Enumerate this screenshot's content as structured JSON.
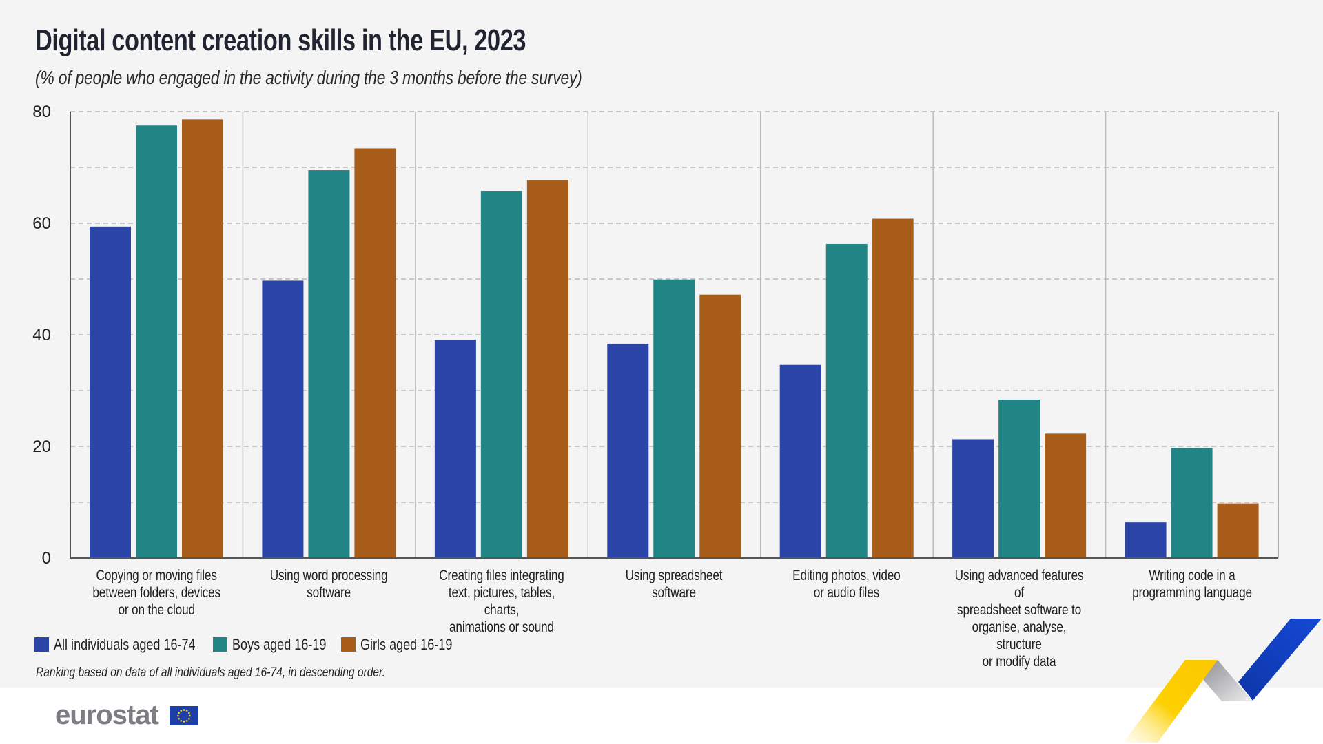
{
  "header": {
    "title": "Digital content creation skills in the EU, 2023",
    "subtitle": "(% of people who engaged in the activity during the 3 months before the survey)"
  },
  "footnote": "Ranking based on data of all individuals aged 16-74, in descending order.",
  "brand": {
    "logo_text": "eurostat",
    "flag_icon": "eu-flag-icon",
    "decoration": "ribbon-chevron-graphic"
  },
  "colors": {
    "all_individuals": "#2a44a8",
    "boys": "#228585",
    "girls": "#a85e1a",
    "background": "#f4f4f4",
    "gridline": "#9a9a9a",
    "axis": "#555555",
    "divider": "#bbbbbb"
  },
  "chart_data": {
    "type": "bar",
    "title": "Digital content creation skills in the EU, 2023",
    "subtitle": "(% of people who engaged in the activity during the 3 months before the survey)",
    "xlabel": "",
    "ylabel": "",
    "ylim": [
      0,
      80
    ],
    "yticks": [
      0,
      20,
      40,
      60,
      80
    ],
    "ytick_labels": [
      "0",
      "20",
      "40",
      "60",
      "80"
    ],
    "minor_gridlines": [
      10,
      30,
      50,
      70
    ],
    "grid": true,
    "legend_position": "bottom-left",
    "categories": [
      "Copying or moving files\nbetween folders, devices\nor on the cloud",
      "Using word processing\nsoftware",
      "Creating files integrating\ntext, pictures, tables, charts,\nanimations or sound",
      "Using spreadsheet software",
      "Editing photos, video\nor audio files",
      "Using advanced features of\nspreadsheet software to\norganise, analyse, structure\nor modify data",
      "Writing code in a\nprogramming language"
    ],
    "series": [
      {
        "name": "All individuals aged 16-74",
        "color": "#2a44a8",
        "values": [
          59.4,
          49.7,
          39.1,
          38.4,
          34.6,
          21.3,
          6.4
        ]
      },
      {
        "name": "Boys aged 16-19",
        "color": "#228585",
        "values": [
          77.5,
          69.5,
          65.8,
          49.9,
          56.3,
          28.4,
          19.7
        ]
      },
      {
        "name": "Girls aged 16-19",
        "color": "#a85e1a",
        "values": [
          78.6,
          73.4,
          67.7,
          47.2,
          60.8,
          22.3,
          9.8
        ]
      }
    ]
  }
}
